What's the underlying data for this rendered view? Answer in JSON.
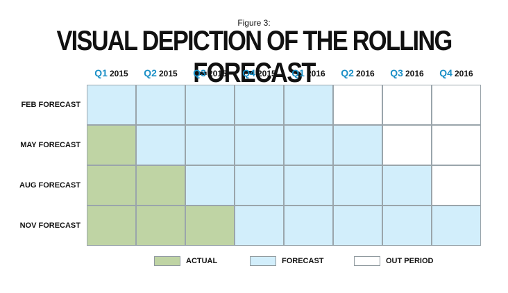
{
  "figure_label": "Figure 3:",
  "title": "VISUAL DEPICTION OF THE ROLLING FORECAST",
  "colors": {
    "actual": "#bfd4a4",
    "forecast": "#d2eefb",
    "out_period": "#ffffff",
    "quarter_accent": "#1a8fc6"
  },
  "columns": [
    {
      "q": "Q1",
      "year": "2015"
    },
    {
      "q": "Q2",
      "year": "2015"
    },
    {
      "q": "Q3",
      "year": "2015"
    },
    {
      "q": "Q4",
      "year": "2015"
    },
    {
      "q": "Q1",
      "year": "2016"
    },
    {
      "q": "Q2",
      "year": "2016"
    },
    {
      "q": "Q3",
      "year": "2016"
    },
    {
      "q": "Q4",
      "year": "2016"
    }
  ],
  "rows": [
    {
      "label": "FEB FORECAST",
      "cells": [
        "forecast",
        "forecast",
        "forecast",
        "forecast",
        "forecast",
        "out_period",
        "out_period",
        "out_period"
      ]
    },
    {
      "label": "MAY FORECAST",
      "cells": [
        "actual",
        "forecast",
        "forecast",
        "forecast",
        "forecast",
        "forecast",
        "out_period",
        "out_period"
      ]
    },
    {
      "label": "AUG FORECAST",
      "cells": [
        "actual",
        "actual",
        "forecast",
        "forecast",
        "forecast",
        "forecast",
        "forecast",
        "out_period"
      ]
    },
    {
      "label": "NOV FORECAST",
      "cells": [
        "actual",
        "actual",
        "actual",
        "forecast",
        "forecast",
        "forecast",
        "forecast",
        "forecast"
      ]
    }
  ],
  "legend": [
    {
      "key": "actual",
      "label": "ACTUAL"
    },
    {
      "key": "forecast",
      "label": "FORECAST"
    },
    {
      "key": "out_period",
      "label": "OUT PERIOD"
    }
  ]
}
